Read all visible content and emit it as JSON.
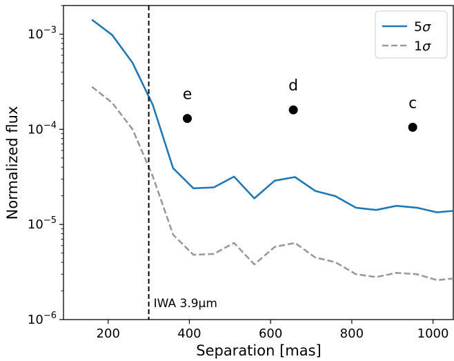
{
  "chart_data": {
    "type": "line",
    "title": "",
    "xlabel": "Separation [mas]",
    "ylabel": "Normalized flux",
    "xlim": [
      90,
      1050
    ],
    "ylim": [
      1e-06,
      0.002
    ],
    "yscale": "log",
    "grid": false,
    "legend_placement": "top-right",
    "x_ticks": [
      200,
      400,
      600,
      800,
      1000
    ],
    "x_tick_labels": [
      "200",
      "400",
      "600",
      "800",
      "1000"
    ],
    "y_ticks": [
      1e-06,
      1e-05,
      0.0001,
      0.001
    ],
    "y_tick_labels": [
      "10⁻⁶",
      "10⁻⁵",
      "10⁻⁴",
      "10⁻³"
    ],
    "series": [
      {
        "name": "5σ",
        "color": "#1f77b4",
        "style": "solid",
        "x": [
          160,
          210,
          260,
          310,
          360,
          410,
          460,
          510,
          560,
          610,
          660,
          710,
          760,
          810,
          860,
          910,
          960,
          1010,
          1050
        ],
        "y": [
          0.00142,
          0.00098,
          0.0005,
          0.00018,
          3.9e-05,
          2.4e-05,
          2.45e-05,
          3.18e-05,
          1.88e-05,
          2.88e-05,
          3.15e-05,
          2.25e-05,
          1.98e-05,
          1.5e-05,
          1.42e-05,
          1.57e-05,
          1.5e-05,
          1.34e-05,
          1.39e-05
        ]
      },
      {
        "name": "1σ",
        "color": "#999999",
        "style": "dashed",
        "x": [
          160,
          210,
          260,
          310,
          360,
          410,
          460,
          510,
          560,
          610,
          660,
          710,
          760,
          810,
          860,
          910,
          960,
          1010,
          1050
        ],
        "y": [
          0.00028,
          0.00019,
          0.0001,
          3.2e-05,
          7.8e-06,
          4.8e-06,
          4.9e-06,
          6.4e-06,
          3.8e-06,
          5.8e-06,
          6.4e-06,
          4.5e-06,
          4e-06,
          3e-06,
          2.8e-06,
          3.1e-06,
          3e-06,
          2.6e-06,
          2.7e-06
        ]
      }
    ],
    "points": [
      {
        "label": "e",
        "x": 395,
        "y": 0.00013
      },
      {
        "label": "d",
        "x": 656,
        "y": 0.00016
      },
      {
        "label": "c",
        "x": 950,
        "y": 0.000105
      }
    ],
    "annotations": [
      {
        "type": "vline",
        "x": 300,
        "style": "dashed",
        "color": "#000000",
        "label": "IWA 3.9μm"
      }
    ]
  }
}
